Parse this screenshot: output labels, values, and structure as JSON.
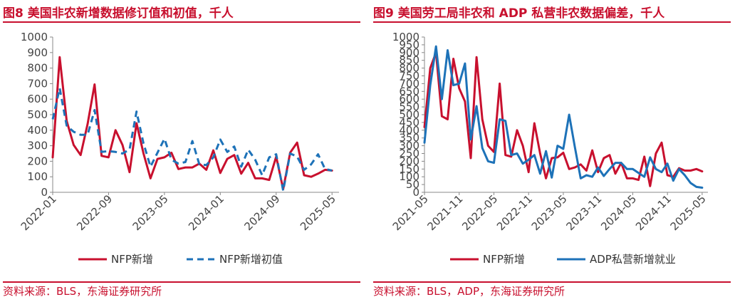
{
  "colors": {
    "red": "#c8102e",
    "blue": "#1d72b8",
    "text": "#444444"
  },
  "fig8": {
    "title": "图8 美国非农新增数据修订值和初值，千人",
    "source": "资料来源：BLS，东海证券研究所",
    "chart_data": {
      "type": "line",
      "ylim": [
        0,
        1000
      ],
      "yticks": [
        0,
        100,
        200,
        300,
        400,
        500,
        600,
        700,
        800,
        900,
        1000
      ],
      "ytick_labels": [
        "0",
        "100",
        "200",
        "300",
        "400",
        "500",
        "600",
        "700",
        "800",
        "900",
        "1000"
      ],
      "xlim": [
        0,
        41
      ],
      "xticks": [
        0,
        8,
        16,
        24,
        32,
        40
      ],
      "xtick_labels": [
        "2022-01",
        "2022-09",
        "2023-05",
        "2024-01",
        "2024-09",
        "2025-05"
      ],
      "series": [
        {
          "name": "NFP新增",
          "style": "solid",
          "color": "#c8102e",
          "values": [
            225,
            870,
            460,
            305,
            240,
            440,
            695,
            235,
            225,
            400,
            305,
            130,
            445,
            250,
            90,
            215,
            225,
            255,
            150,
            160,
            160,
            185,
            145,
            270,
            125,
            215,
            240,
            120,
            190,
            90,
            90,
            80,
            230,
            20,
            255,
            320,
            110,
            100,
            120,
            145,
            140
          ]
        },
        {
          "name": "NFP新增初值",
          "style": "dashed",
          "color": "#1d72b8",
          "values": [
            470,
            670,
            430,
            390,
            370,
            370,
            530,
            260,
            265,
            260,
            250,
            275,
            520,
            315,
            165,
            255,
            345,
            210,
            185,
            195,
            330,
            180,
            175,
            225,
            340,
            260,
            295,
            165,
            275,
            210,
            110,
            225,
            245,
            10,
            250,
            230,
            145,
            180,
            245,
            150,
            140
          ]
        }
      ]
    }
  },
  "fig9": {
    "title": "图9 美国劳工局非农和 ADP 私营非农数据偏差，千人",
    "source": "资料来源：BLS，ADP，东海证券研究所",
    "chart_data": {
      "type": "line",
      "ylim": [
        0,
        1000
      ],
      "yticks": [
        0,
        50,
        100,
        150,
        200,
        250,
        300,
        350,
        400,
        450,
        500,
        550,
        600,
        650,
        700,
        750,
        800,
        850,
        900,
        950,
        1000
      ],
      "ytick_labels": [
        "0",
        "50",
        "100",
        "150",
        "200",
        "250",
        "300",
        "350",
        "400",
        "450",
        "500",
        "550",
        "600",
        "650",
        "700",
        "750",
        "800",
        "850",
        "900",
        "950",
        "1000"
      ],
      "xlim": [
        0,
        49
      ],
      "xticks": [
        0,
        6,
        12,
        18,
        24,
        30,
        36,
        42,
        48
      ],
      "xtick_labels": [
        "2021-05",
        "2021-11",
        "2022-05",
        "2022-11",
        "2023-05",
        "2023-11",
        "2024-05",
        "2024-11",
        "2025-05"
      ],
      "series": [
        {
          "name": "NFP新增",
          "style": "solid",
          "color": "#c8102e",
          "values": [
            420,
            800,
            900,
            490,
            470,
            860,
            670,
            585,
            220,
            870,
            470,
            300,
            260,
            700,
            240,
            230,
            400,
            300,
            130,
            445,
            250,
            90,
            220,
            225,
            255,
            150,
            160,
            180,
            140,
            270,
            130,
            220,
            240,
            120,
            190,
            90,
            90,
            80,
            230,
            40,
            250,
            320,
            110,
            100,
            155,
            140,
            140,
            150,
            135
          ]
        },
        {
          "name": "ADP私营新增就业",
          "style": "solid",
          "color": "#1d72b8",
          "values": [
            320,
            690,
            940,
            600,
            915,
            690,
            700,
            830,
            340,
            555,
            285,
            200,
            190,
            470,
            460,
            240,
            250,
            185,
            210,
            240,
            120,
            265,
            95,
            300,
            280,
            500,
            290,
            90,
            110,
            100,
            160,
            105,
            150,
            190,
            190,
            150,
            150,
            125,
            100,
            225,
            150,
            130,
            185,
            75,
            150,
            110,
            60,
            35,
            30
          ]
        }
      ]
    }
  }
}
